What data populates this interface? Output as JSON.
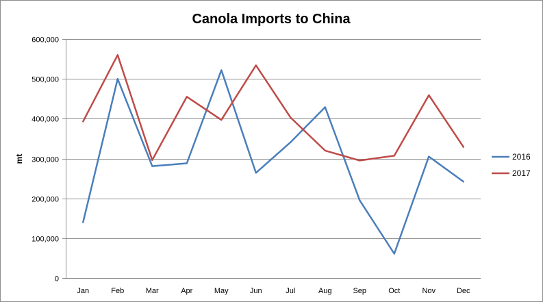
{
  "chart_data": {
    "type": "line",
    "title": "Canola Imports to China",
    "xlabel": "",
    "ylabel": "mt",
    "categories": [
      "Jan",
      "Feb",
      "Mar",
      "Apr",
      "May",
      "Jun",
      "Jul",
      "Aug",
      "Sep",
      "Oct",
      "Nov",
      "Dec"
    ],
    "ylim": [
      0,
      600000
    ],
    "yticks": [
      0,
      100000,
      200000,
      300000,
      400000,
      500000,
      600000
    ],
    "ytick_labels": [
      "0",
      "100,000",
      "200,000",
      "300,000",
      "400,000",
      "500,000",
      "600,000"
    ],
    "grid": true,
    "legend_position": "right",
    "series": [
      {
        "name": "2016",
        "color": "#4a7ebb",
        "values": [
          140000,
          500000,
          281000,
          288000,
          522000,
          264000,
          341000,
          429000,
          195000,
          61000,
          305000,
          242000
        ]
      },
      {
        "name": "2017",
        "color": "#be4b48",
        "values": [
          393000,
          560000,
          296000,
          455000,
          397000,
          534000,
          403000,
          320000,
          295000,
          307000,
          459000,
          329000
        ]
      }
    ]
  }
}
